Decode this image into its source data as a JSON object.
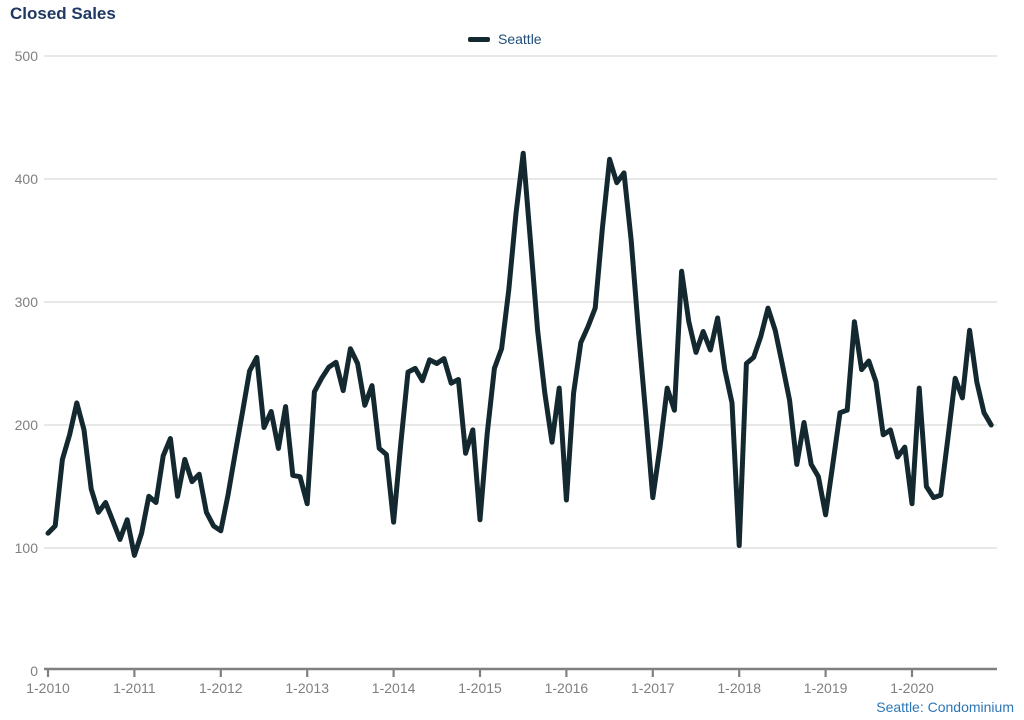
{
  "header": {
    "title": "Closed Sales"
  },
  "legend": {
    "series_label": "Seattle"
  },
  "footer": {
    "source_label": "Seattle: Condominium"
  },
  "colors": {
    "background": "#ffffff",
    "line": "#14292f",
    "title_text": "#1f3864",
    "legend_text": "#1f4e79",
    "axis_text": "#7f7f7f",
    "gridline": "#d9d9d9",
    "axis_line": "#808080",
    "source_text": "#2e75b6"
  },
  "chart_data": {
    "type": "line",
    "title": "Closed Sales",
    "xlabel": "",
    "ylabel": "",
    "ylim": [
      0,
      500
    ],
    "y_tick_interval": 100,
    "y_tick_labels": [
      "0",
      "100",
      "200",
      "300",
      "400",
      "500"
    ],
    "grid": "horizontal-only",
    "legend_position": "top-center",
    "x_start_month": "2010-01",
    "x_end_month": "2020-12",
    "x_tick_labels": [
      "1-2010",
      "1-2011",
      "1-2012",
      "1-2013",
      "1-2014",
      "1-2015",
      "1-2016",
      "1-2017",
      "1-2018",
      "1-2019",
      "1-2020"
    ],
    "series": [
      {
        "name": "Seattle",
        "points_per_year": 12,
        "values": [
          112,
          118,
          172,
          192,
          218,
          196,
          148,
          129,
          137,
          122,
          107,
          123,
          94,
          112,
          142,
          137,
          175,
          189,
          142,
          172,
          154,
          160,
          129,
          118,
          114,
          143,
          177,
          210,
          244,
          255,
          198,
          211,
          181,
          215,
          159,
          158,
          136,
          227,
          238,
          247,
          251,
          228,
          262,
          250,
          216,
          232,
          181,
          176,
          121,
          185,
          243,
          246,
          236,
          253,
          250,
          254,
          234,
          237,
          177,
          196,
          123,
          193,
          246,
          262,
          310,
          372,
          421,
          350,
          277,
          226,
          186,
          230,
          139,
          226,
          267,
          280,
          295,
          360,
          416,
          397,
          405,
          350,
          277,
          210,
          141,
          182,
          230,
          212,
          325,
          284,
          259,
          276,
          261,
          287,
          245,
          218,
          102,
          250,
          255,
          272,
          295,
          277,
          249,
          220,
          168,
          202,
          168,
          158,
          127,
          168,
          210,
          212,
          284,
          245,
          252,
          235,
          192,
          196,
          174,
          182,
          136,
          230,
          150,
          141,
          143,
          190,
          238,
          222,
          277,
          235,
          210,
          200
        ]
      }
    ]
  }
}
